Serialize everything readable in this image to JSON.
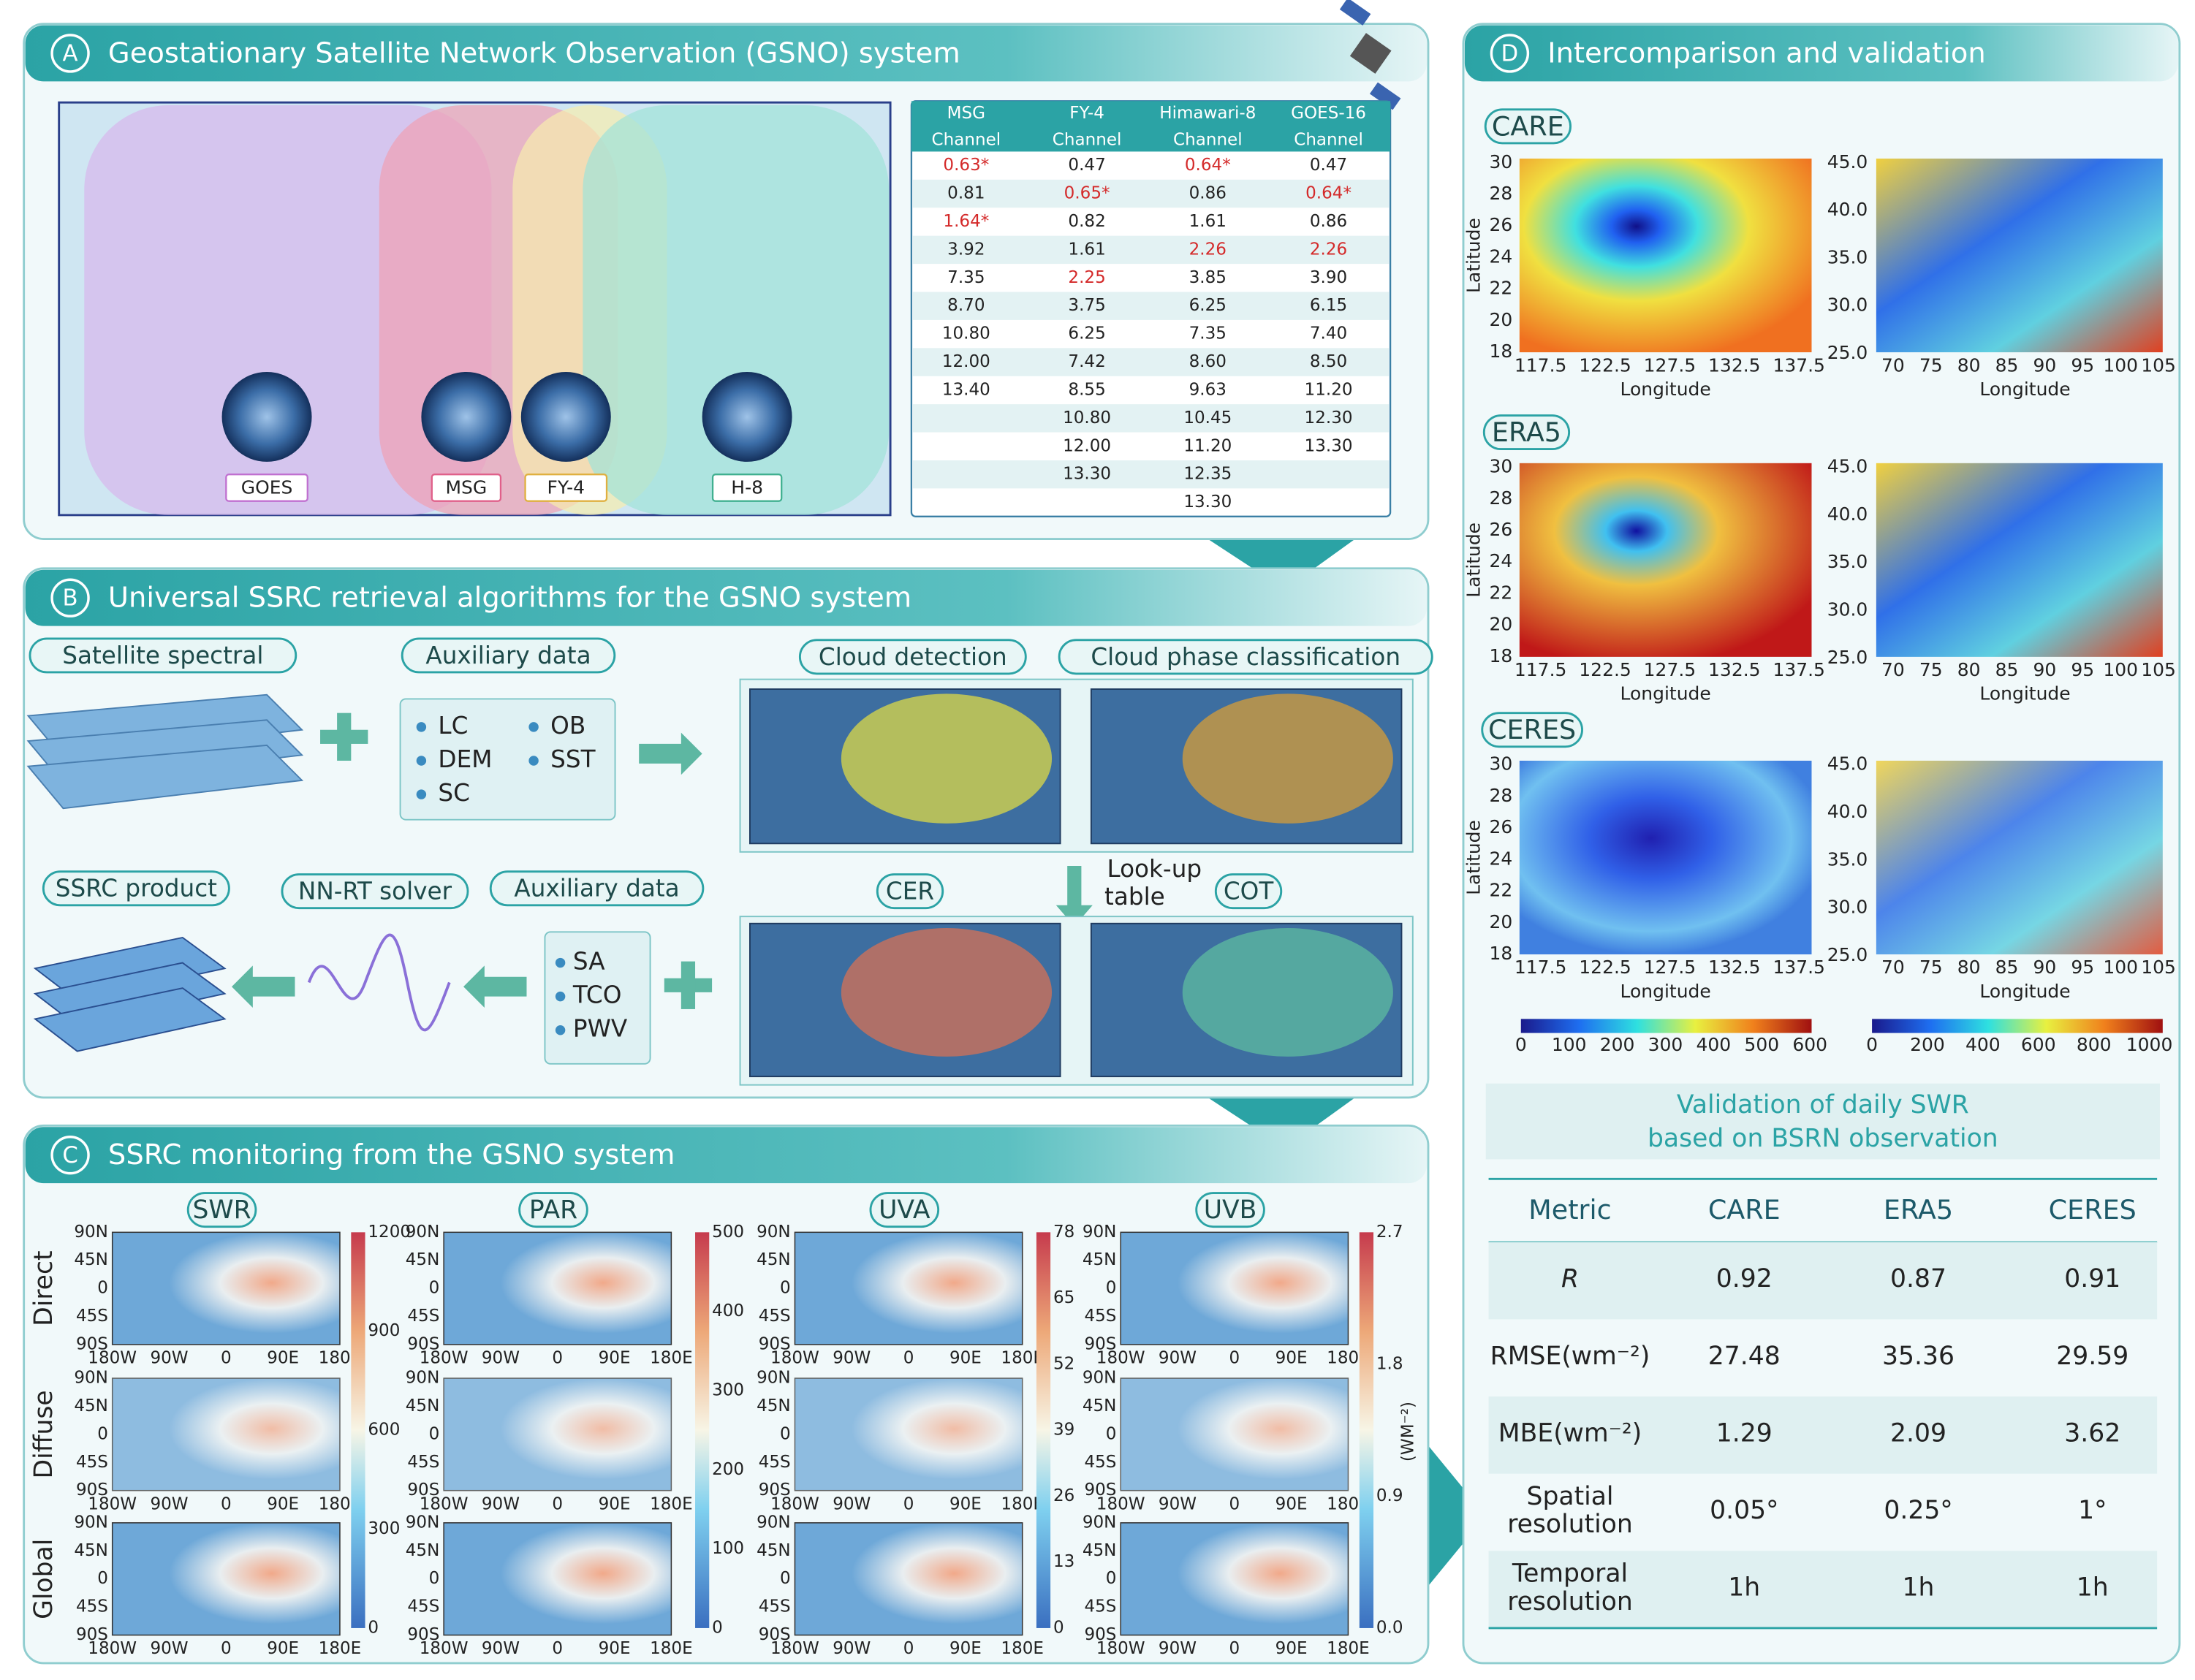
{
  "panel_a": {
    "letter": "A",
    "title": "Geostationary Satellite Network Observation (GSNO) system",
    "satellites": [
      "GOES",
      "MSG",
      "FY-4",
      "H-8"
    ],
    "table": {
      "header": [
        "MSG",
        "FY-4",
        "Himawari-8",
        "GOES-16"
      ],
      "subheader": "Channel",
      "rows": [
        [
          "0.63*",
          "0.47",
          "0.64*",
          "0.47"
        ],
        [
          "0.81",
          "0.65*",
          "0.86",
          "0.64*"
        ],
        [
          "1.64*",
          "0.82",
          "1.61",
          "0.86"
        ],
        [
          "3.92",
          "1.61",
          "2.26",
          "2.26"
        ],
        [
          "7.35",
          "2.25",
          "3.85",
          "3.90"
        ],
        [
          "8.70",
          "3.75",
          "6.25",
          "6.15"
        ],
        [
          "10.80",
          "6.25",
          "7.35",
          "7.40"
        ],
        [
          "12.00",
          "7.42",
          "8.60",
          "8.50"
        ],
        [
          "13.40",
          "8.55",
          "9.63",
          "11.20"
        ],
        [
          null,
          "10.80",
          "10.45",
          "12.30"
        ],
        [
          null,
          "12.00",
          "11.20",
          "13.30"
        ],
        [
          null,
          "13.30",
          "12.35",
          null
        ],
        [
          null,
          null,
          "13.30",
          null
        ]
      ],
      "highlight_color": "#d42a2a",
      "highlighted_cells": [
        [
          0,
          0
        ],
        [
          0,
          2
        ],
        [
          1,
          1
        ],
        [
          1,
          3
        ],
        [
          2,
          0
        ],
        [
          3,
          2
        ],
        [
          3,
          3
        ],
        [
          4,
          1
        ]
      ]
    }
  },
  "panel_b": {
    "letter": "B",
    "title": "Universal SSRC retrieval algorithms for the GSNO system",
    "satellite_spectral": "Satellite spectral",
    "auxiliary_data_1": "Auxiliary data",
    "aux_items_1": [
      "LC",
      "OB",
      "DEM",
      "SST",
      "SC"
    ],
    "cloud_detection": "Cloud detection",
    "cloud_phase": "Cloud phase classification",
    "lookup": [
      "Look-up",
      "table"
    ],
    "cer": "CER",
    "cot": "COT",
    "ssrc_product": "SSRC product",
    "solver": "NN-RT solver",
    "auxiliary_data_2": "Auxiliary data",
    "aux_items_2": [
      "SA",
      "TCO",
      "PWV"
    ]
  },
  "panel_c": {
    "letter": "C",
    "title": "SSRC monitoring from the GSNO system",
    "variables": [
      "SWR",
      "PAR",
      "UVA",
      "UVB"
    ],
    "rows": [
      "Direct",
      "Diffuse",
      "Global"
    ],
    "lat_ticks": [
      "90N",
      "45N",
      "0",
      "45S",
      "90S"
    ],
    "lon_ticks": [
      "180W",
      "90W",
      "0",
      "90E",
      "180E"
    ],
    "colorbars": [
      [
        0,
        300,
        600,
        900,
        1200
      ],
      [
        0,
        100,
        200,
        300,
        400,
        500
      ],
      [
        0,
        13,
        26,
        39,
        52,
        65,
        78
      ],
      [
        "0.0",
        "0.9",
        "1.8",
        "2.7"
      ]
    ],
    "unit": "(WM⁻²)"
  },
  "panel_d": {
    "letter": "D",
    "title": "Intercomparison and validation",
    "datasets": [
      "CARE",
      "ERA5",
      "CERES"
    ],
    "x_label": "Longitude",
    "y_label": "Latitude",
    "left_lat_ticks": [
      30,
      28,
      26,
      24,
      22,
      20,
      18
    ],
    "left_lon_ticks": [
      "117.5",
      "122.5",
      "127.5",
      "132.5",
      "137.5"
    ],
    "right_lat_ticks": [
      "45.0",
      "40.0",
      "35.0",
      "30.0",
      "25.0"
    ],
    "right_lon_ticks": [
      70,
      75,
      80,
      85,
      90,
      95,
      100,
      105
    ],
    "left_colorbar": [
      0,
      100,
      200,
      300,
      400,
      500,
      600
    ],
    "right_colorbar": [
      0,
      200,
      400,
      600,
      800,
      1000
    ],
    "validation": {
      "title_lines": [
        "Validation of daily SWR",
        "based on BSRN observation"
      ],
      "header": [
        "Metric",
        "CARE",
        "ERA5",
        "CERES"
      ],
      "rows": [
        {
          "metric": [
            "R"
          ],
          "values": [
            "0.92",
            "0.87",
            "0.91"
          ]
        },
        {
          "metric": [
            "RMSE(wm⁻²)"
          ],
          "values": [
            "27.48",
            "35.36",
            "29.59"
          ]
        },
        {
          "metric": [
            "MBE(wm⁻²)"
          ],
          "values": [
            "1.29",
            "2.09",
            "3.62"
          ]
        },
        {
          "metric": [
            "Spatial",
            "resolution"
          ],
          "values": [
            "0.05°",
            "0.25°",
            "1°"
          ]
        },
        {
          "metric": [
            "Temporal",
            "resolution"
          ],
          "values": [
            "1h",
            "1h",
            "1h"
          ]
        }
      ]
    }
  }
}
